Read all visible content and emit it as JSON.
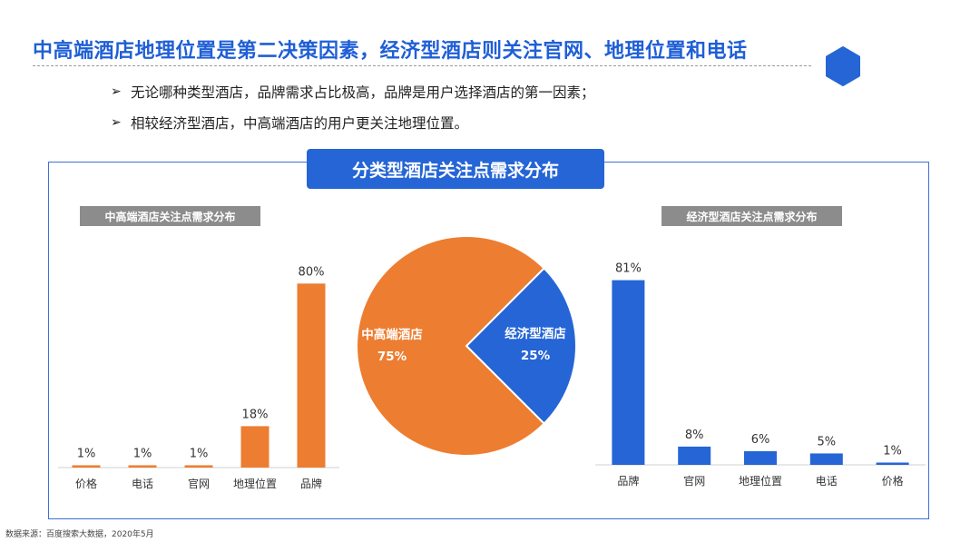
{
  "header": {
    "title": "中高端酒店地理位置是第二决策因素，经济型酒店则关注官网、地理位置和电话",
    "bullets": [
      "无论哪种类型酒店，品牌需求占比极高，品牌是用户选择酒店的第一因素；",
      "相较经济型酒店，中高端酒店的用户更关注地理位置。"
    ],
    "bullet_glyph": "➢"
  },
  "panel": {
    "title": "分类型酒店关注点需求分布"
  },
  "colors": {
    "accent_blue": "#2565d6",
    "orange": "#ed7d31",
    "header_gray": "#8c8c8c"
  },
  "chart_data": [
    {
      "type": "bar",
      "title": "中高端酒店关注点需求分布",
      "categories": [
        "价格",
        "电话",
        "官网",
        "地理位置",
        "品牌"
      ],
      "values": [
        1,
        1,
        1,
        18,
        80
      ],
      "value_labels": [
        "1%",
        "1%",
        "1%",
        "18%",
        "80%"
      ],
      "ylim": [
        0,
        90
      ],
      "color": "#ed7d31",
      "grid": false
    },
    {
      "type": "pie",
      "labels": [
        "中高端酒店",
        "经济型酒店"
      ],
      "values": [
        75,
        25
      ],
      "value_labels": [
        "75%",
        "25%"
      ],
      "colors": [
        "#ed7d31",
        "#2565d6"
      ]
    },
    {
      "type": "bar",
      "title": "经济型酒店关注点需求分布",
      "categories": [
        "品牌",
        "官网",
        "地理位置",
        "电话",
        "价格"
      ],
      "values": [
        81,
        8,
        6,
        5,
        1
      ],
      "value_labels": [
        "81%",
        "8%",
        "6%",
        "5%",
        "1%"
      ],
      "ylim": [
        0,
        90
      ],
      "color": "#2565d6",
      "grid": false
    }
  ],
  "footer": {
    "source": "数据来源：百度搜索大数据，2020年5月"
  }
}
